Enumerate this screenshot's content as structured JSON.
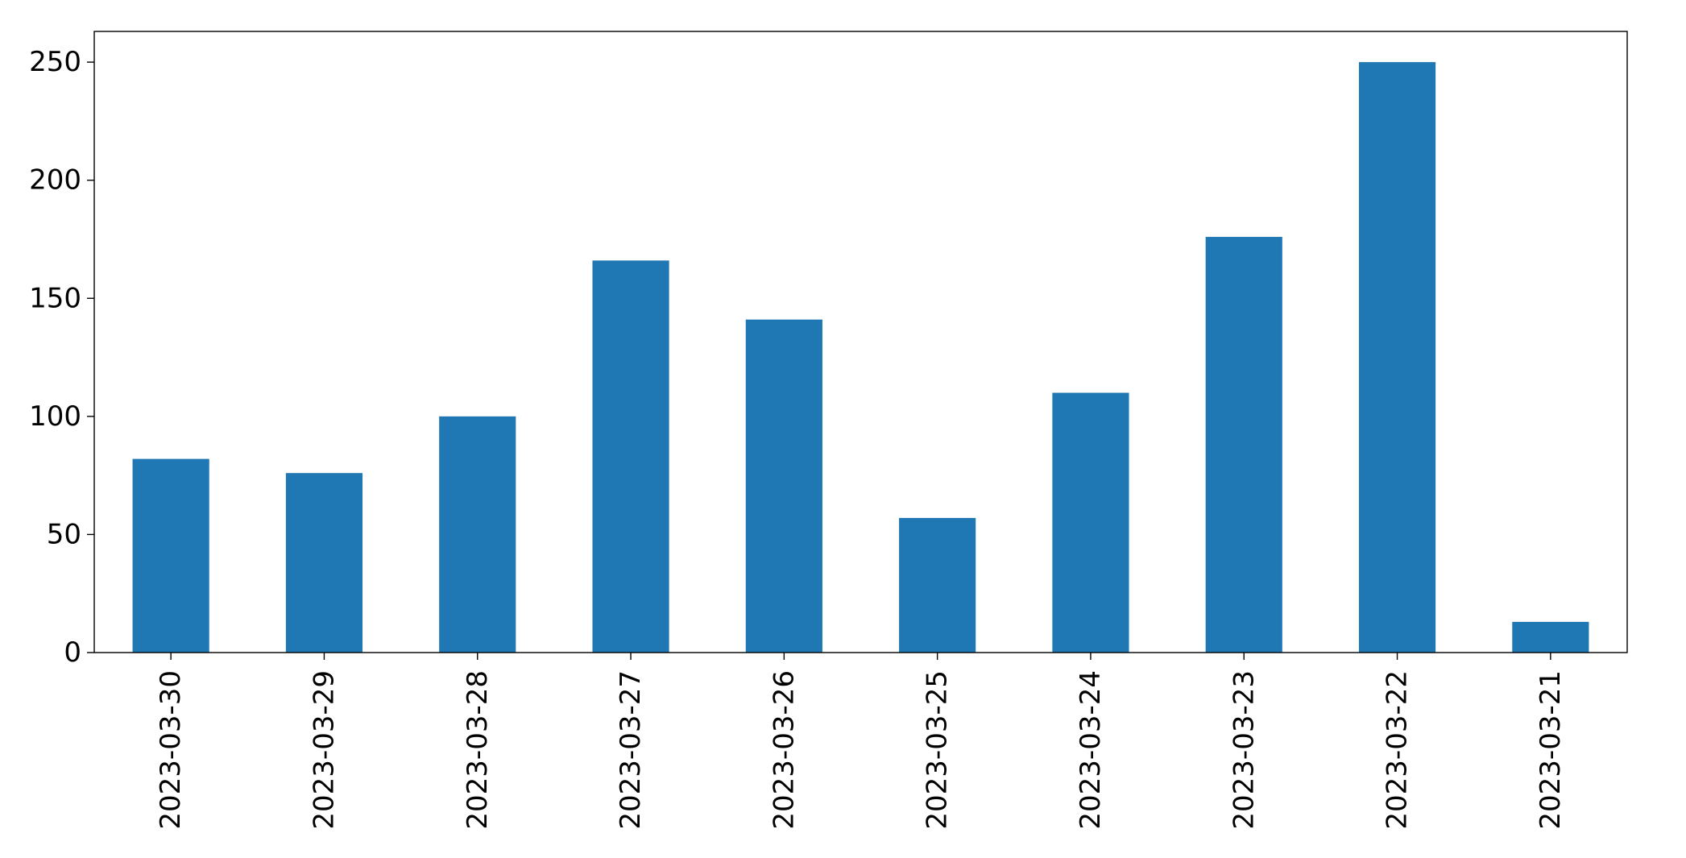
{
  "chart_data": {
    "type": "bar",
    "title": "",
    "xlabel": "",
    "ylabel": "",
    "categories": [
      "2023-03-30",
      "2023-03-29",
      "2023-03-28",
      "2023-03-27",
      "2023-03-26",
      "2023-03-25",
      "2023-03-24",
      "2023-03-23",
      "2023-03-22",
      "2023-03-21"
    ],
    "values": [
      82,
      76,
      100,
      166,
      141,
      57,
      110,
      176,
      250,
      13
    ],
    "ylim": [
      0,
      263
    ],
    "yticks": [
      0,
      50,
      100,
      150,
      200,
      250
    ],
    "grid": false,
    "legend": "none",
    "bar_color": "#1f77b4"
  }
}
